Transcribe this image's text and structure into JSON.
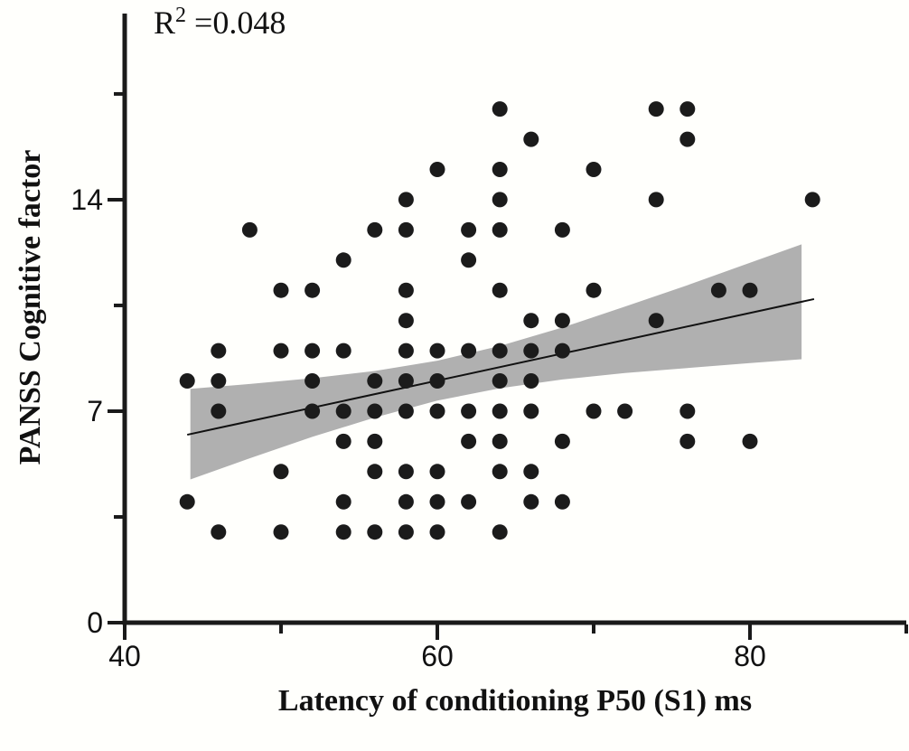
{
  "chart_data": {
    "type": "scatter",
    "annotation": {
      "base": "R",
      "superscript": "2",
      "rest": " =0.048"
    },
    "xlabel": "Latency of conditioning P50 (S1) ms",
    "ylabel": "PANSS Cognitive factor",
    "xlim": [
      40,
      90
    ],
    "ylim": [
      0,
      20.16
    ],
    "grid": false,
    "legend": "none",
    "x_ticks": [
      {
        "value": 40,
        "label": "40"
      },
      {
        "value": 60,
        "label": "60"
      },
      {
        "value": 80,
        "label": "80"
      }
    ],
    "x_minor_ticks": [
      50,
      70,
      90
    ],
    "y_ticks": [
      {
        "value": 0,
        "label": "0"
      },
      {
        "value": 7,
        "label": "7"
      },
      {
        "value": 14,
        "label": "14"
      }
    ],
    "y_minor_ticks": [
      3.5,
      10.5,
      17.5
    ],
    "points": [
      [
        64,
        17
      ],
      [
        74,
        17
      ],
      [
        76,
        17
      ],
      [
        66,
        16
      ],
      [
        76,
        16
      ],
      [
        60,
        15
      ],
      [
        64,
        15
      ],
      [
        70,
        15
      ],
      [
        58,
        14
      ],
      [
        64,
        14
      ],
      [
        74,
        14
      ],
      [
        84,
        14
      ],
      [
        48,
        13
      ],
      [
        56,
        13
      ],
      [
        58,
        13
      ],
      [
        62,
        13
      ],
      [
        64,
        13
      ],
      [
        68,
        13
      ],
      [
        54,
        12
      ],
      [
        62,
        12
      ],
      [
        50,
        11
      ],
      [
        52,
        11
      ],
      [
        58,
        11
      ],
      [
        64,
        11
      ],
      [
        70,
        11
      ],
      [
        78,
        11
      ],
      [
        80,
        11
      ],
      [
        58,
        10
      ],
      [
        66,
        10
      ],
      [
        68,
        10
      ],
      [
        74,
        10
      ],
      [
        46,
        9
      ],
      [
        50,
        9
      ],
      [
        52,
        9
      ],
      [
        54,
        9
      ],
      [
        58,
        9
      ],
      [
        60,
        9
      ],
      [
        62,
        9
      ],
      [
        64,
        9
      ],
      [
        66,
        9
      ],
      [
        68,
        9
      ],
      [
        44,
        8
      ],
      [
        46,
        8
      ],
      [
        52,
        8
      ],
      [
        56,
        8
      ],
      [
        58,
        8
      ],
      [
        60,
        8
      ],
      [
        64,
        8
      ],
      [
        66,
        8
      ],
      [
        46,
        7
      ],
      [
        52,
        7
      ],
      [
        54,
        7
      ],
      [
        56,
        7
      ],
      [
        58,
        7
      ],
      [
        60,
        7
      ],
      [
        62,
        7
      ],
      [
        64,
        7
      ],
      [
        66,
        7
      ],
      [
        70,
        7
      ],
      [
        72,
        7
      ],
      [
        76,
        7
      ],
      [
        54,
        6
      ],
      [
        56,
        6
      ],
      [
        62,
        6
      ],
      [
        64,
        6
      ],
      [
        68,
        6
      ],
      [
        76,
        6
      ],
      [
        80,
        6
      ],
      [
        50,
        5
      ],
      [
        56,
        5
      ],
      [
        58,
        5
      ],
      [
        60,
        5
      ],
      [
        64,
        5
      ],
      [
        66,
        5
      ],
      [
        44,
        4
      ],
      [
        54,
        4
      ],
      [
        58,
        4
      ],
      [
        60,
        4
      ],
      [
        62,
        4
      ],
      [
        66,
        4
      ],
      [
        68,
        4
      ],
      [
        46,
        3
      ],
      [
        50,
        3
      ],
      [
        54,
        3
      ],
      [
        56,
        3
      ],
      [
        58,
        3
      ],
      [
        60,
        3
      ],
      [
        64,
        3
      ]
    ],
    "regression_line": {
      "x1": 44.0,
      "y1": 6.22,
      "x2": 84.1,
      "y2": 10.71,
      "r_squared": 0.048
    },
    "confidence_band": {
      "x": [
        44.2,
        48.0,
        52.0,
        56.0,
        60.0,
        64.0,
        68.0,
        72.0,
        76.0,
        80.0,
        83.3
      ],
      "upper": [
        7.74,
        7.9,
        8.09,
        8.33,
        8.67,
        9.16,
        9.77,
        10.46,
        11.17,
        11.91,
        12.52
      ],
      "lower": [
        4.74,
        5.44,
        6.15,
        6.79,
        7.35,
        7.76,
        8.05,
        8.26,
        8.43,
        8.59,
        8.72
      ]
    },
    "colors": {
      "point": "#1b1b1b",
      "band": "#b0b0b0",
      "line": "#111111",
      "axis": "#1a1a1a",
      "background": "#fffffc",
      "text": "#111111"
    },
    "point_radius": 8.5
  }
}
